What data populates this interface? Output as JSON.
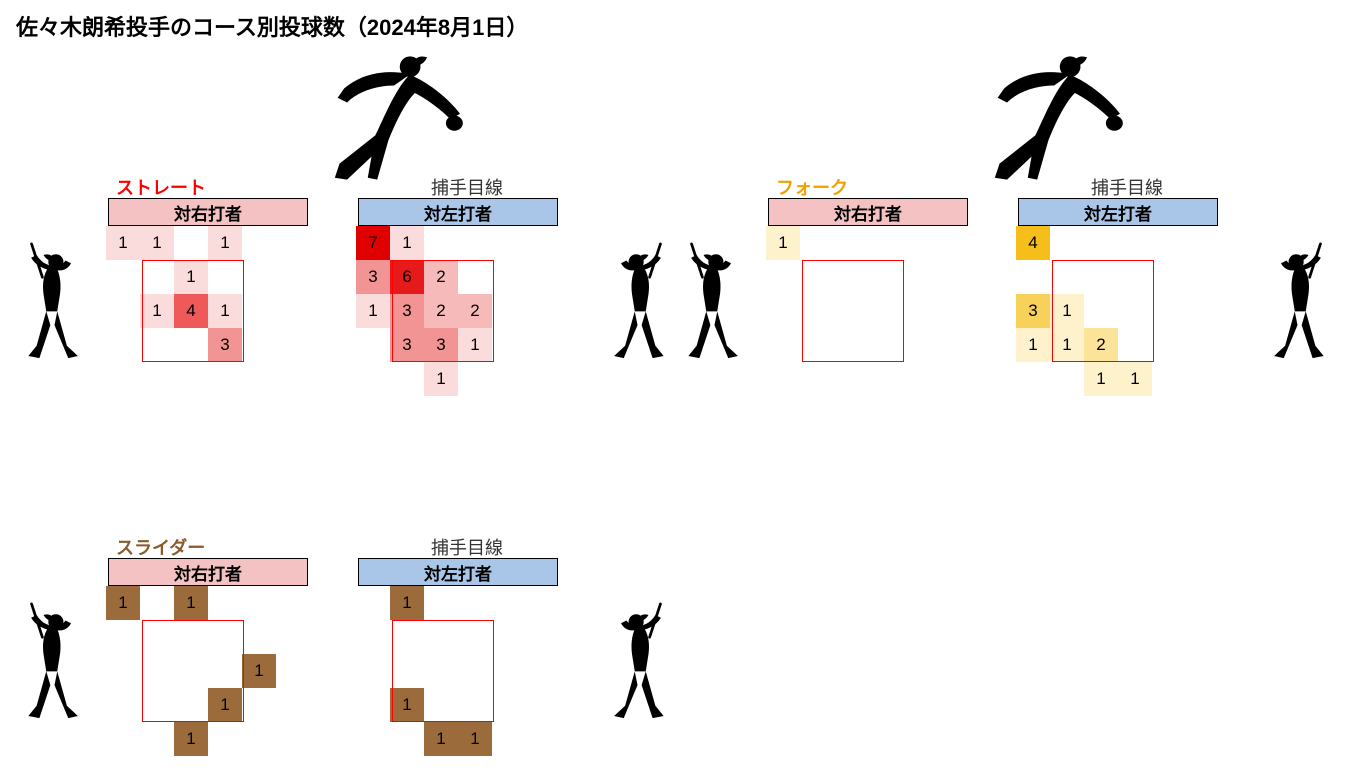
{
  "title": "佐々木朗希投手のコース別投球数（2024年8月1日）",
  "catcher_view_label": "捕手目線",
  "header_vs_right": "対右打者",
  "header_vs_left": "対左打者",
  "pitch_types": [
    {
      "name": "ストレート",
      "name_color": "#ff0000",
      "show_pitcher": true,
      "show_batters": true,
      "color_ramp": [
        [
          1,
          "#fbdcdc"
        ],
        [
          2,
          "#f7baba"
        ],
        [
          3,
          "#f29494"
        ],
        [
          4,
          "#ee5a5a"
        ],
        [
          5,
          "#eb3a3a"
        ],
        [
          6,
          "#e61a1a"
        ],
        [
          7,
          "#e00000"
        ]
      ],
      "vs_right": [
        {
          "row": 0,
          "col": 0,
          "v": 1
        },
        {
          "row": 0,
          "col": 1,
          "v": 1
        },
        {
          "row": 0,
          "col": 3,
          "v": 1
        },
        {
          "row": 1,
          "col": 2,
          "v": 1
        },
        {
          "row": 2,
          "col": 1,
          "v": 1
        },
        {
          "row": 2,
          "col": 2,
          "v": 4
        },
        {
          "row": 2,
          "col": 3,
          "v": 1
        },
        {
          "row": 3,
          "col": 3,
          "v": 3
        }
      ],
      "vs_left": [
        {
          "row": 0,
          "col": 0,
          "v": 7
        },
        {
          "row": 0,
          "col": 1,
          "v": 1
        },
        {
          "row": 1,
          "col": 0,
          "v": 3
        },
        {
          "row": 1,
          "col": 1,
          "v": 6
        },
        {
          "row": 1,
          "col": 2,
          "v": 2
        },
        {
          "row": 2,
          "col": 0,
          "v": 1
        },
        {
          "row": 2,
          "col": 1,
          "v": 3
        },
        {
          "row": 2,
          "col": 2,
          "v": 2
        },
        {
          "row": 2,
          "col": 3,
          "v": 2
        },
        {
          "row": 3,
          "col": 1,
          "v": 3
        },
        {
          "row": 3,
          "col": 2,
          "v": 3
        },
        {
          "row": 3,
          "col": 3,
          "v": 1
        },
        {
          "row": 4,
          "col": 2,
          "v": 1
        }
      ]
    },
    {
      "name": "フォーク",
      "name_color": "#f0a000",
      "show_pitcher": true,
      "show_batters": true,
      "color_ramp": [
        [
          1,
          "#fdf2cc"
        ],
        [
          2,
          "#fbe49a"
        ],
        [
          3,
          "#f8d15a"
        ],
        [
          4,
          "#f5be1a"
        ]
      ],
      "vs_right": [
        {
          "row": 0,
          "col": 0,
          "v": 1
        }
      ],
      "vs_left": [
        {
          "row": 0,
          "col": 0,
          "v": 4
        },
        {
          "row": 2,
          "col": 0,
          "v": 3
        },
        {
          "row": 2,
          "col": 1,
          "v": 1
        },
        {
          "row": 3,
          "col": 0,
          "v": 1
        },
        {
          "row": 3,
          "col": 1,
          "v": 1
        },
        {
          "row": 3,
          "col": 2,
          "v": 2
        },
        {
          "row": 4,
          "col": 2,
          "v": 1
        },
        {
          "row": 4,
          "col": 3,
          "v": 1
        }
      ]
    },
    {
      "name": "スライダー",
      "name_color": "#8b5a2b",
      "show_pitcher": false,
      "show_batters": true,
      "color_ramp": [
        [
          1,
          "#9c6b3c"
        ]
      ],
      "vs_right": [
        {
          "row": 0,
          "col": 0,
          "v": 1
        },
        {
          "row": 0,
          "col": 2,
          "v": 1
        },
        {
          "row": 2,
          "col": 4,
          "v": 1
        },
        {
          "row": 3,
          "col": 3,
          "v": 1
        },
        {
          "row": 4,
          "col": 2,
          "v": 1
        }
      ],
      "vs_left": [
        {
          "row": 0,
          "col": 1,
          "v": 1
        },
        {
          "row": 3,
          "col": 1,
          "v": 1
        },
        {
          "row": 4,
          "col": 2,
          "v": 1
        },
        {
          "row": 4,
          "col": 3,
          "v": 1
        }
      ]
    }
  ]
}
